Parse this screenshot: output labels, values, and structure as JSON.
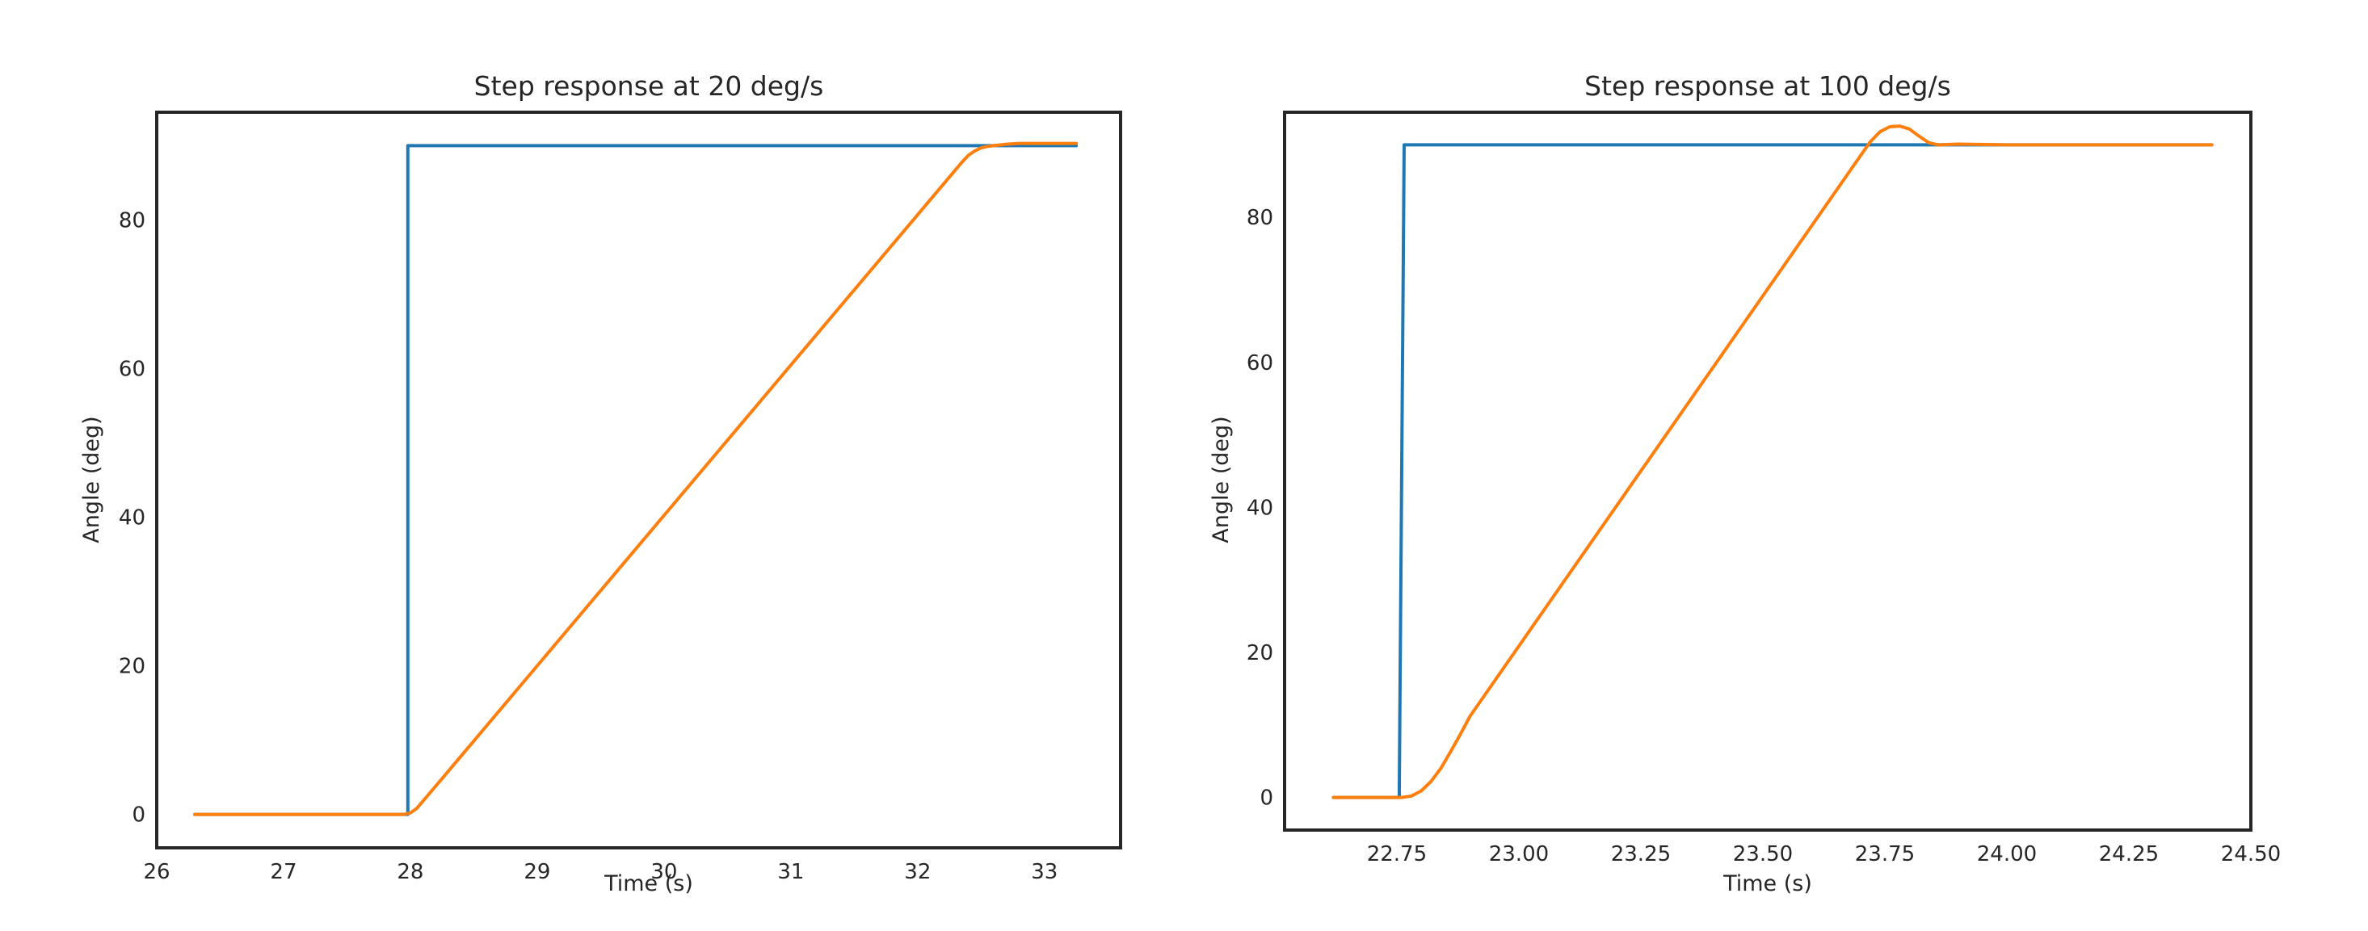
{
  "chart_data": [
    {
      "type": "line",
      "title": "Step response at 20 deg/s",
      "xlabel": "Time (s)",
      "ylabel": "Angle (deg)",
      "xlim": [
        26.0,
        33.6
      ],
      "ylim": [
        -4.5,
        94.5
      ],
      "xticks": [
        26,
        27,
        28,
        29,
        30,
        31,
        32,
        33
      ],
      "yticks": [
        0,
        20,
        40,
        60,
        80
      ],
      "grid": false,
      "series": [
        {
          "color": "#1f77b4",
          "x": [
            26.3,
            27.98,
            27.98,
            33.25
          ],
          "y": [
            0,
            0,
            90,
            90
          ]
        },
        {
          "color": "#ff7f0e",
          "x": [
            26.3,
            27.95,
            28.0,
            28.05,
            28.1,
            28.2,
            32.35,
            32.4,
            32.45,
            32.5,
            32.55,
            32.6,
            32.7,
            32.8,
            33.0,
            33.25
          ],
          "y": [
            0,
            0,
            0.2,
            0.8,
            1.8,
            3.8,
            87.8,
            88.7,
            89.3,
            89.7,
            89.9,
            90.0,
            90.2,
            90.3,
            90.3,
            90.3
          ]
        }
      ]
    },
    {
      "type": "line",
      "title": "Step response at 100 deg/s",
      "xlabel": "Time (s)",
      "ylabel": "Angle (deg)",
      "xlim": [
        22.52,
        24.5
      ],
      "ylim": [
        -4.5,
        94.5
      ],
      "xticks": [
        22.75,
        23.0,
        23.25,
        23.5,
        23.75,
        24.0,
        24.25,
        24.5
      ],
      "xtick_labels": [
        "22.75",
        "23.00",
        "23.25",
        "23.50",
        "23.75",
        "24.00",
        "24.25",
        "24.50"
      ],
      "yticks": [
        0,
        20,
        40,
        60,
        80
      ],
      "grid": false,
      "series": [
        {
          "color": "#1f77b4",
          "x": [
            22.62,
            22.755,
            22.765,
            24.42
          ],
          "y": [
            0,
            0,
            90,
            90
          ]
        },
        {
          "color": "#ff7f0e",
          "x": [
            22.62,
            22.76,
            22.78,
            22.8,
            22.82,
            22.84,
            22.86,
            22.88,
            22.9,
            23.7,
            23.72,
            23.74,
            23.76,
            23.78,
            23.8,
            23.82,
            23.84,
            23.86,
            23.9,
            24.0,
            24.42
          ],
          "y": [
            0,
            0,
            0.2,
            0.9,
            2.2,
            4.0,
            6.3,
            8.7,
            11.2,
            88.5,
            90.4,
            91.8,
            92.5,
            92.6,
            92.2,
            91.2,
            90.3,
            90.0,
            90.1,
            90.0,
            90.0
          ]
        }
      ]
    }
  ]
}
